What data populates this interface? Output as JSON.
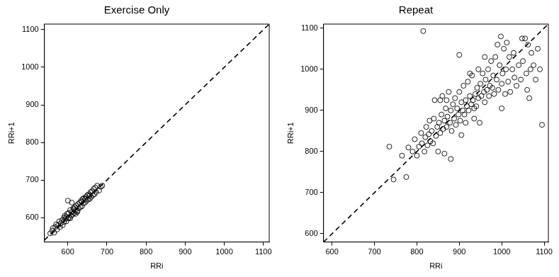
{
  "chart_data": [
    {
      "type": "scatter",
      "title": "Exercise Only",
      "x_label": "RRi",
      "y_label": "RRi+1",
      "x": [
        555,
        560,
        562,
        565,
        568,
        570,
        572,
        575,
        578,
        580,
        582,
        585,
        587,
        590,
        590,
        592,
        594,
        596,
        598,
        600,
        600,
        602,
        604,
        606,
        608,
        610,
        610,
        612,
        614,
        616,
        618,
        620,
        622,
        624,
        626,
        628,
        630,
        632,
        634,
        636,
        638,
        640,
        642,
        644,
        646,
        648,
        650,
        652,
        654,
        656,
        658,
        660,
        662,
        664,
        666,
        668,
        670,
        672,
        675,
        680,
        684,
        688,
        596,
        606,
        615,
        625,
        635,
        645,
        655,
        620
      ],
      "values": [
        558,
        565,
        572,
        560,
        575,
        582,
        568,
        580,
        590,
        575,
        585,
        593,
        580,
        600,
        588,
        605,
        596,
        590,
        610,
        645,
        598,
        612,
        600,
        620,
        605,
        640,
        615,
        608,
        625,
        612,
        628,
        618,
        632,
        615,
        636,
        625,
        640,
        628,
        645,
        630,
        650,
        638,
        652,
        640,
        655,
        645,
        660,
        648,
        662,
        650,
        668,
        655,
        670,
        660,
        676,
        662,
        680,
        668,
        685,
        672,
        682,
        685,
        602,
        598,
        622,
        618,
        642,
        650,
        658,
        610
      ],
      "xlim": [
        540,
        1115
      ],
      "ylim": [
        535,
        1115
      ],
      "xticks": [
        600,
        700,
        800,
        900,
        1000,
        1100
      ],
      "yticks": [
        600,
        700,
        800,
        900,
        1000,
        1100
      ],
      "grid": false,
      "marker": "circle",
      "color": "#000000"
    },
    {
      "type": "scatter",
      "title": "Repeat",
      "x_label": "RRi",
      "y_label": "RRi+1",
      "x": [
        735,
        745,
        765,
        775,
        780,
        790,
        795,
        800,
        805,
        810,
        812,
        815,
        818,
        820,
        822,
        825,
        828,
        830,
        832,
        835,
        838,
        840,
        842,
        845,
        848,
        850,
        852,
        855,
        858,
        860,
        862,
        865,
        868,
        870,
        872,
        875,
        878,
        880,
        882,
        885,
        888,
        890,
        892,
        895,
        898,
        900,
        902,
        905,
        908,
        910,
        912,
        915,
        918,
        920,
        922,
        925,
        928,
        930,
        932,
        935,
        938,
        940,
        942,
        945,
        948,
        950,
        952,
        955,
        958,
        960,
        962,
        965,
        968,
        970,
        972,
        975,
        978,
        980,
        982,
        985,
        988,
        990,
        992,
        995,
        998,
        1000,
        1002,
        1005,
        1008,
        1010,
        1012,
        1015,
        1018,
        1020,
        1025,
        1028,
        1030,
        1035,
        1040,
        1045,
        1048,
        1050,
        1055,
        1058,
        1060,
        1062,
        1065,
        1068,
        1070,
        1075,
        1080,
        1085,
        1090,
        1095,
        880,
        865,
        905,
        925,
        945,
        900,
        870,
        855,
        915,
        935,
        960,
        1000
      ],
      "values": [
        812,
        732,
        790,
        738,
        810,
        800,
        830,
        790,
        812,
        845,
        820,
        1093,
        800,
        835,
        860,
        815,
        842,
        875,
        825,
        850,
        820,
        880,
        925,
        838,
        860,
        800,
        870,
        845,
        890,
        935,
        855,
        875,
        905,
        860,
        885,
        945,
        870,
        900,
        850,
        915,
        880,
        930,
        865,
        905,
        890,
        945,
        875,
        920,
        900,
        960,
        890,
        925,
        910,
        970,
        900,
        935,
        915,
        985,
        925,
        880,
        940,
        910,
        955,
        930,
        870,
        965,
        935,
        990,
        945,
        920,
        975,
        950,
        1000,
        935,
        960,
        1020,
        955,
        985,
        940,
        1030,
        975,
        1060,
        950,
        1010,
        1080,
        965,
        990,
        1050,
        940,
        1000,
        1065,
        970,
        1030,
        945,
        1000,
        1040,
        980,
        960,
        1010,
        975,
        1075,
        1020,
        1075,
        990,
        950,
        1060,
        930,
        1000,
        1040,
        1010,
        975,
        1050,
        1000,
        865,
        782,
        795,
        840,
        990,
        1000,
        1035,
        925,
        925,
        870,
        905,
        1030,
        905
      ],
      "xlim": [
        580,
        1110
      ],
      "ylim": [
        580,
        1110
      ],
      "xticks": [
        600,
        700,
        800,
        900,
        1000,
        1100
      ],
      "yticks": [
        600,
        700,
        800,
        900,
        1000,
        1100
      ],
      "grid": false,
      "marker": "circle",
      "color": "#000000"
    }
  ]
}
